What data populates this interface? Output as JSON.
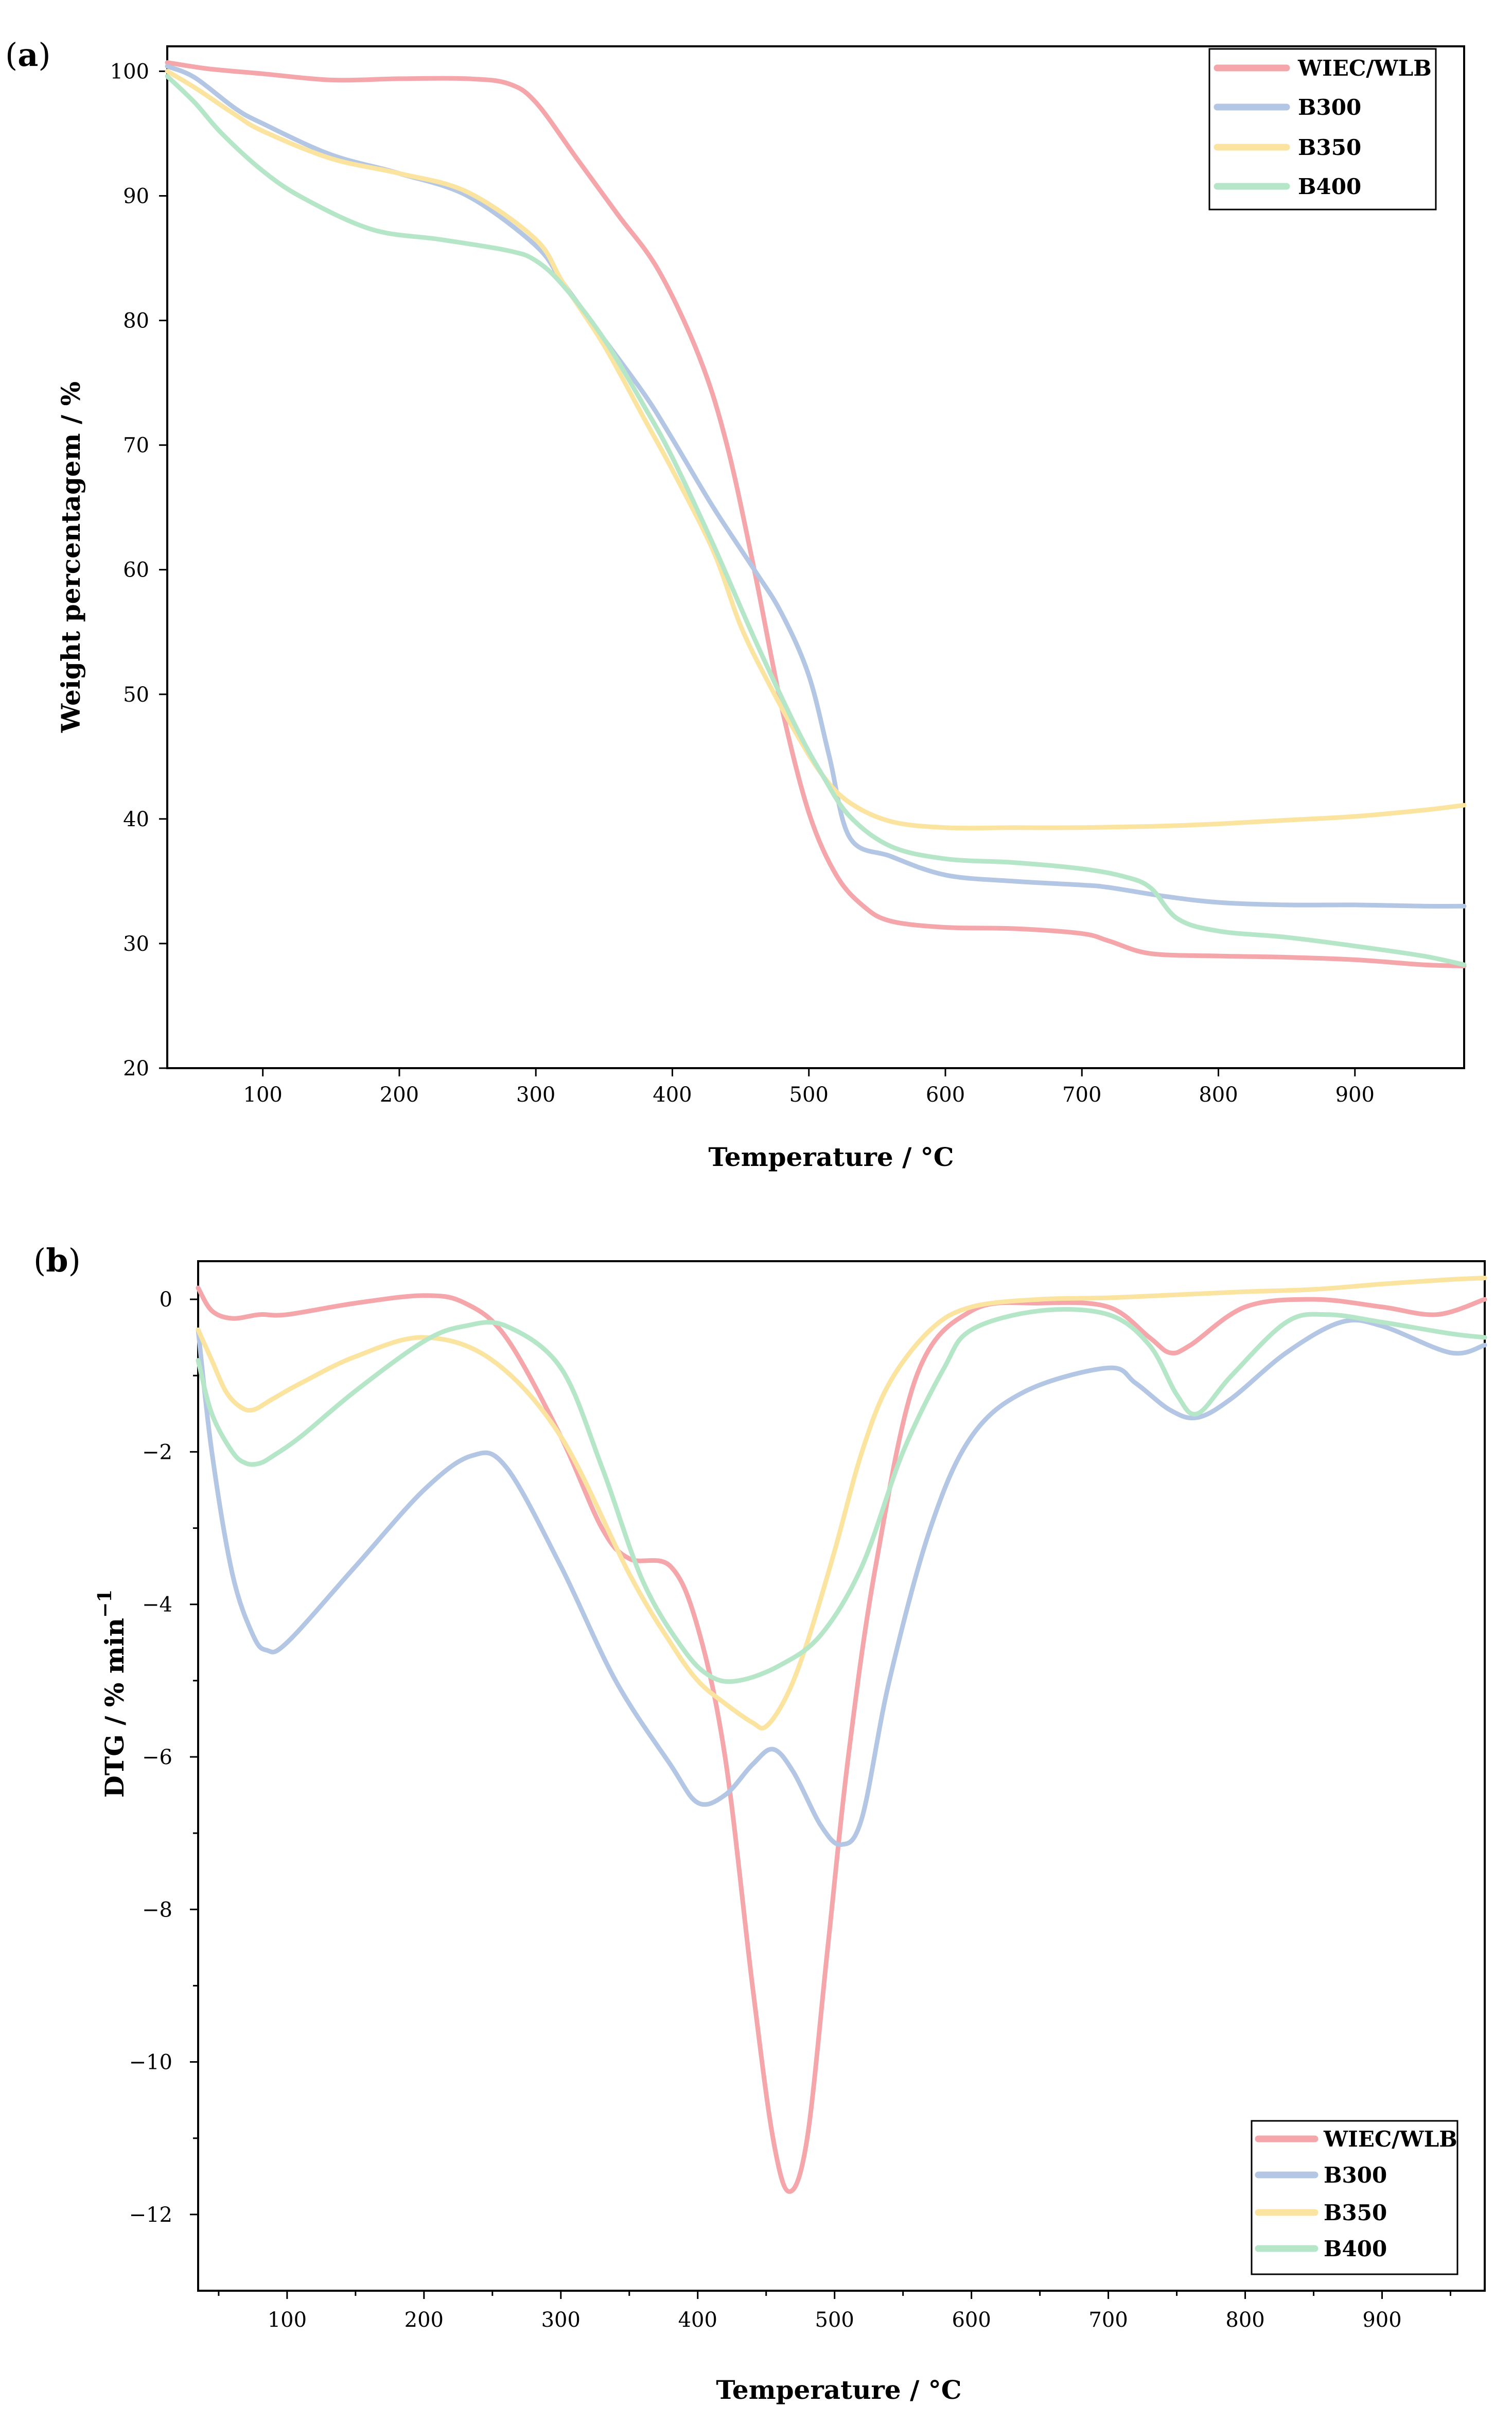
{
  "chart_data": [
    {
      "panel_label": "a",
      "type": "line",
      "xlabel": "Temperature / °C",
      "ylabel": "Weight percentagem / %",
      "xlim": [
        30,
        980
      ],
      "ylim": [
        20,
        102
      ],
      "xticks": [
        100,
        200,
        300,
        400,
        500,
        600,
        700,
        800,
        900
      ],
      "xtick_labels": [
        "100",
        "200",
        "300",
        "400",
        "500",
        "600",
        "700",
        "800",
        "900"
      ],
      "yticks": [
        20,
        30,
        40,
        50,
        60,
        70,
        80,
        90,
        100
      ],
      "ytick_labels": [
        "20",
        "30",
        "40",
        "50",
        "60",
        "70",
        "80",
        "90",
        "100"
      ],
      "legend_position": "top-right",
      "series": [
        {
          "name": "WIEC/WLB",
          "color": "#f4a6aa",
          "x": [
            30,
            60,
            100,
            150,
            200,
            250,
            280,
            300,
            330,
            360,
            390,
            420,
            440,
            460,
            480,
            500,
            520,
            540,
            560,
            600,
            650,
            700,
            720,
            750,
            800,
            850,
            900,
            950,
            980
          ],
          "y": [
            100.7,
            100.2,
            99.8,
            99.3,
            99.4,
            99.4,
            99.0,
            97.5,
            93.0,
            88.5,
            84.0,
            77.0,
            70.0,
            60.0,
            49.0,
            40.5,
            35.5,
            33.0,
            31.8,
            31.3,
            31.2,
            30.8,
            30.2,
            29.2,
            29.0,
            28.9,
            28.7,
            28.3,
            28.2
          ]
        },
        {
          "name": "B300",
          "color": "#b3c6e3",
          "x": [
            30,
            50,
            80,
            100,
            150,
            200,
            250,
            300,
            320,
            350,
            380,
            400,
            430,
            460,
            480,
            500,
            515,
            530,
            560,
            600,
            650,
            700,
            720,
            760,
            800,
            850,
            900,
            950,
            980
          ],
          "y": [
            100.4,
            99.5,
            97.0,
            95.8,
            93.3,
            91.8,
            90.0,
            86.0,
            83.0,
            78.5,
            74.0,
            70.5,
            65.0,
            60.0,
            56.5,
            51.5,
            45.0,
            38.5,
            37.0,
            35.5,
            35.0,
            34.7,
            34.5,
            33.8,
            33.3,
            33.1,
            33.1,
            33.0,
            33.0
          ]
        },
        {
          "name": "B350",
          "color": "#fbe4a0",
          "x": [
            30,
            50,
            80,
            100,
            150,
            200,
            250,
            300,
            320,
            350,
            380,
            400,
            430,
            450,
            470,
            490,
            510,
            530,
            560,
            600,
            650,
            700,
            750,
            800,
            850,
            900,
            950,
            980
          ],
          "y": [
            100.0,
            98.7,
            96.5,
            95.2,
            93.0,
            91.8,
            90.3,
            86.5,
            83.0,
            78.0,
            72.0,
            68.0,
            61.5,
            55.5,
            51.0,
            47.0,
            43.5,
            41.3,
            39.8,
            39.3,
            39.3,
            39.3,
            39.4,
            39.6,
            39.9,
            40.2,
            40.7,
            41.1
          ]
        },
        {
          "name": "B400",
          "color": "#b6e6c8",
          "x": [
            30,
            50,
            70,
            100,
            130,
            180,
            230,
            280,
            300,
            320,
            350,
            380,
            400,
            430,
            460,
            490,
            510,
            530,
            560,
            600,
            650,
            700,
            730,
            750,
            770,
            800,
            850,
            900,
            950,
            980
          ],
          "y": [
            99.6,
            97.5,
            95.0,
            92.0,
            89.8,
            87.3,
            86.5,
            85.6,
            84.8,
            82.8,
            78.5,
            73.0,
            69.0,
            62.0,
            54.5,
            47.5,
            43.5,
            40.2,
            37.8,
            36.8,
            36.5,
            36.0,
            35.4,
            34.5,
            32.0,
            31.0,
            30.5,
            29.8,
            29.0,
            28.3
          ]
        }
      ],
      "legend": [
        "WIEC/WLB",
        "B300",
        "B350",
        "B400"
      ]
    },
    {
      "panel_label": "b",
      "type": "line",
      "xlabel": "Temperature / °C",
      "ylabel": "DTG / % min",
      "ylabel_superscript": "−1",
      "xlim": [
        35,
        975
      ],
      "ylim": [
        -13,
        0.5
      ],
      "xticks": [
        100,
        200,
        300,
        400,
        500,
        600,
        700,
        800,
        900
      ],
      "xtick_labels": [
        "100",
        "200",
        "300",
        "400",
        "500",
        "600",
        "700",
        "800",
        "900"
      ],
      "yticks": [
        0,
        -2,
        -4,
        -6,
        -8,
        -10,
        -12
      ],
      "ytick_labels": [
        "0",
        "−2",
        "−4",
        "−6",
        "−8",
        "−10",
        "−12"
      ],
      "legend_position": "bottom-right",
      "series": [
        {
          "name": "WIEC/WLB",
          "color": "#f4a6aa",
          "x": [
            35,
            45,
            60,
            80,
            100,
            150,
            200,
            230,
            260,
            300,
            330,
            350,
            380,
            400,
            420,
            440,
            455,
            467,
            480,
            495,
            510,
            530,
            560,
            600,
            650,
            700,
            730,
            745,
            760,
            800,
            850,
            900,
            940,
            975
          ],
          "y": [
            0.15,
            -0.15,
            -0.25,
            -0.2,
            -0.2,
            -0.05,
            0.05,
            -0.05,
            -0.5,
            -1.8,
            -3.0,
            -3.4,
            -3.5,
            -4.3,
            -6.0,
            -9.0,
            -11.0,
            -11.7,
            -11.0,
            -8.5,
            -6.0,
            -3.5,
            -1.0,
            -0.15,
            -0.05,
            -0.1,
            -0.5,
            -0.7,
            -0.6,
            -0.1,
            0.0,
            -0.1,
            -0.2,
            0.0
          ]
        },
        {
          "name": "B300",
          "color": "#b3c6e3",
          "x": [
            35,
            45,
            60,
            75,
            85,
            100,
            150,
            200,
            235,
            260,
            300,
            340,
            380,
            400,
            420,
            440,
            455,
            470,
            490,
            505,
            520,
            540,
            570,
            600,
            640,
            700,
            720,
            745,
            765,
            790,
            830,
            870,
            900,
            950,
            975
          ],
          "y": [
            -0.4,
            -2.0,
            -3.6,
            -4.4,
            -4.6,
            -4.5,
            -3.5,
            -2.5,
            -2.05,
            -2.2,
            -3.5,
            -5.0,
            -6.1,
            -6.6,
            -6.5,
            -6.1,
            -5.9,
            -6.2,
            -6.9,
            -7.15,
            -6.8,
            -5.0,
            -3.0,
            -1.8,
            -1.2,
            -0.9,
            -1.1,
            -1.45,
            -1.55,
            -1.3,
            -0.7,
            -0.3,
            -0.35,
            -0.7,
            -0.6
          ]
        },
        {
          "name": "B350",
          "color": "#fbe4a0",
          "x": [
            35,
            45,
            55,
            65,
            75,
            90,
            110,
            150,
            200,
            250,
            300,
            350,
            380,
            400,
            420,
            440,
            450,
            465,
            480,
            500,
            520,
            540,
            570,
            600,
            650,
            700,
            750,
            800,
            850,
            900,
            950,
            975
          ],
          "y": [
            -0.4,
            -0.8,
            -1.2,
            -1.4,
            -1.45,
            -1.3,
            -1.1,
            -0.75,
            -0.5,
            -0.8,
            -1.8,
            -3.6,
            -4.5,
            -5.0,
            -5.3,
            -5.55,
            -5.6,
            -5.2,
            -4.5,
            -3.3,
            -2.0,
            -1.1,
            -0.4,
            -0.1,
            0.0,
            0.02,
            0.06,
            0.1,
            0.13,
            0.2,
            0.26,
            0.28
          ]
        },
        {
          "name": "B400",
          "color": "#b6e6c8",
          "x": [
            35,
            45,
            60,
            70,
            80,
            90,
            110,
            150,
            200,
            230,
            260,
            300,
            330,
            360,
            390,
            410,
            430,
            460,
            490,
            520,
            550,
            580,
            600,
            650,
            700,
            730,
            750,
            765,
            790,
            830,
            860,
            900,
            950,
            975
          ],
          "y": [
            -0.8,
            -1.5,
            -2.0,
            -2.15,
            -2.15,
            -2.05,
            -1.8,
            -1.2,
            -0.55,
            -0.35,
            -0.35,
            -0.9,
            -2.2,
            -3.7,
            -4.6,
            -4.95,
            -5.0,
            -4.8,
            -4.4,
            -3.5,
            -2.0,
            -0.9,
            -0.4,
            -0.15,
            -0.2,
            -0.6,
            -1.25,
            -1.5,
            -1.0,
            -0.3,
            -0.2,
            -0.3,
            -0.45,
            -0.5
          ]
        }
      ],
      "legend": [
        "WIEC/WLB",
        "B300",
        "B350",
        "B400"
      ]
    }
  ]
}
